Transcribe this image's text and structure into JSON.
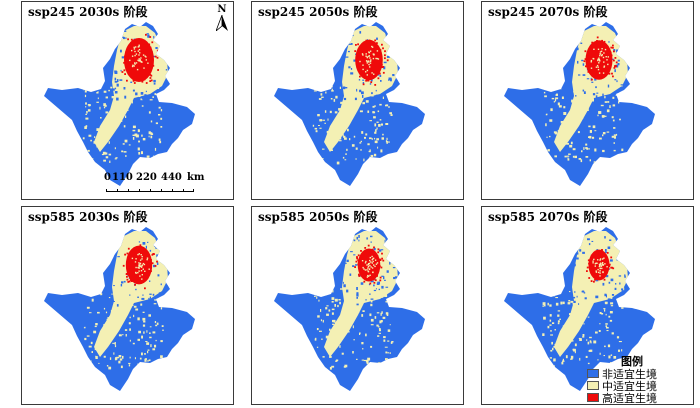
{
  "colors": {
    "unsuitable": "#2e6ee8",
    "moderate": "#f4f0b4",
    "high": "#ef0a0a",
    "border": "#3a3a3a"
  },
  "panels": [
    {
      "title": "ssp245 2030s 阶段",
      "high_extent": 1.0
    },
    {
      "title": "ssp245 2050s 阶段",
      "high_extent": 0.92
    },
    {
      "title": "ssp245 2070s 阶段",
      "high_extent": 0.9
    },
    {
      "title": "ssp585 2030s 阶段",
      "high_extent": 0.88
    },
    {
      "title": "ssp585 2050s 阶段",
      "high_extent": 0.75
    },
    {
      "title": "ssp585 2070s 阶段",
      "high_extent": 0.7
    }
  ],
  "north_arrow": {
    "label": "N"
  },
  "scalebar": {
    "ticks": [
      "0",
      "110",
      "220",
      "440"
    ],
    "unit": "km"
  },
  "legend": {
    "title": "图例",
    "items": [
      {
        "label": "非适宜生境",
        "color": "#2e6ee8"
      },
      {
        "label": "中适宜生境",
        "color": "#f4f0b4"
      },
      {
        "label": "高适宜生境",
        "color": "#ef0a0a"
      }
    ]
  }
}
